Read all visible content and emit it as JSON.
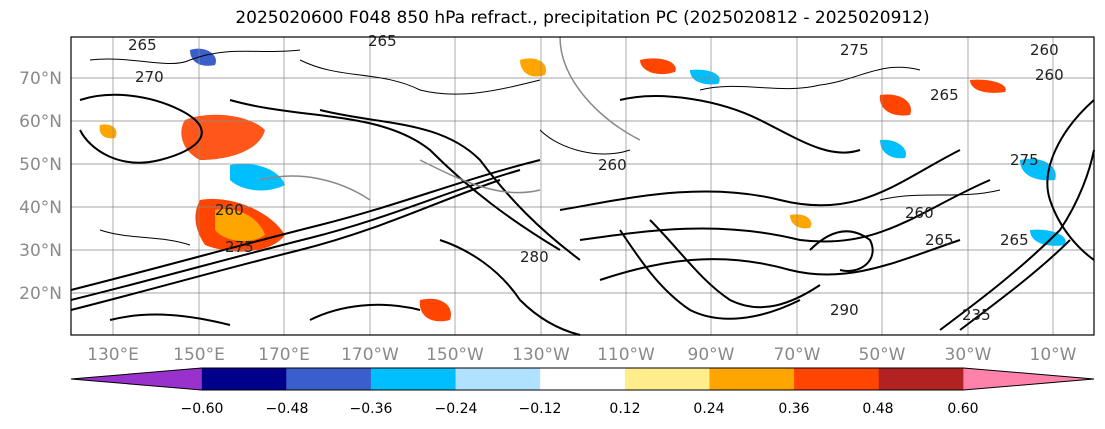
{
  "title": "2025020600 F048 850 hPa refract., precipitation PC (2025020812 - 2025020912)",
  "lat_labels": [
    "70°N",
    "60°N",
    "50°N",
    "40°N",
    "30°N",
    "20°N"
  ],
  "lon_labels": [
    "130°E",
    "150°E",
    "170°E",
    "170°W",
    "150°W",
    "130°W",
    "110°W",
    "90°W",
    "70°W",
    "50°W",
    "30°W",
    "10°W"
  ],
  "contour_labels": [
    "265",
    "265",
    "270",
    "275",
    "260",
    "260",
    "265",
    "275",
    "260",
    "260",
    "275",
    "280",
    "265",
    "265",
    "290",
    "235",
    "260"
  ],
  "colorbar": {
    "colors": [
      "#9932cc",
      "#00008b",
      "#3a5fcd",
      "#00bfff",
      "#b0e2ff",
      "#ffffff",
      "#ffec8b",
      "#ffa500",
      "#ff4500",
      "#b22222",
      "#ff82ab"
    ],
    "ticks": [
      "−0.60",
      "−0.48",
      "−0.36",
      "−0.24",
      "−0.12",
      "0.12",
      "0.24",
      "0.36",
      "0.48",
      "0.60"
    ]
  }
}
